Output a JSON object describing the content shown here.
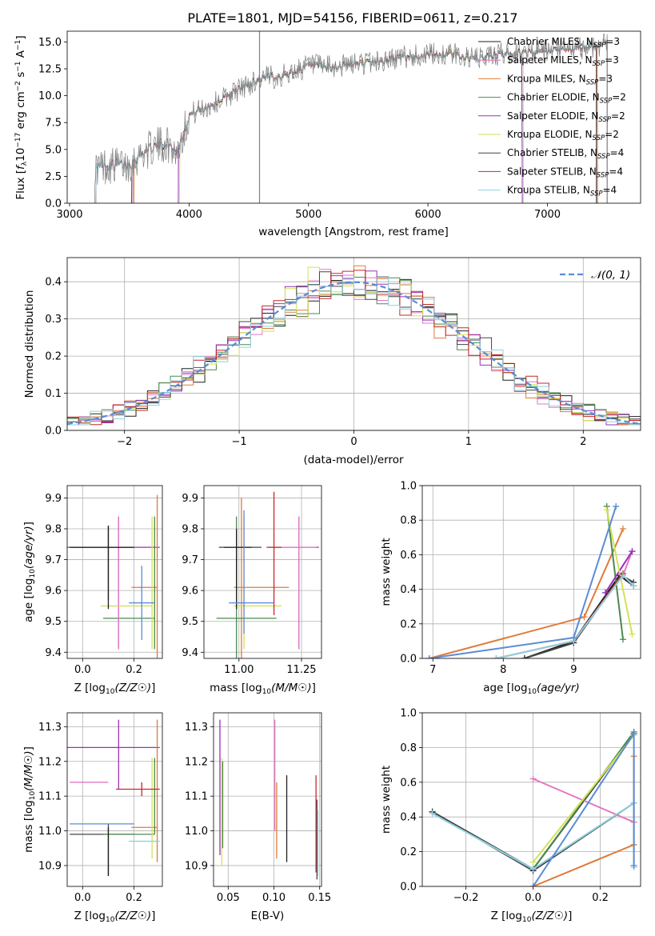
{
  "figure_title": "PLATE=1801, MJD=54156, FIBERID=0611, z=0.217",
  "colors": {
    "chabrier_miles": "#1f1f1f",
    "salpeter_miles": "#e377c2",
    "kroupa_miles": "#e07b39",
    "chabrier_elodie": "#4c8a50",
    "salpeter_elodie": "#9b30b8",
    "kroupa_elodie": "#d4e157",
    "chabrier_stelib": "#444444",
    "salpeter_stelib": "#c62828",
    "kroupa_stelib": "#8fd0e0",
    "data_gray": "#808080",
    "gaussian": "#5b8bd6"
  },
  "chart_data": [
    {
      "id": "spectrum",
      "type": "line",
      "title": "PLATE=1801, MJD=54156, FIBERID=0611, z=0.217",
      "xlabel": "wavelength [Angstrom, rest frame]",
      "ylabel_main": "Flux [",
      "ylabel_sub": "f",
      "ylabel_tail": "10",
      "xlim": [
        2980,
        7780
      ],
      "ylim": [
        0,
        16
      ],
      "xticks": [
        "3000",
        "4000",
        "5000",
        "6000",
        "7000"
      ],
      "yticks": [
        "0.0",
        "2.5",
        "5.0",
        "7.5",
        "10.0",
        "12.5",
        "15.0"
      ],
      "grid": false,
      "legend_position": "right",
      "legend": [
        {
          "name": "Chabrier MILES, N",
          "sub": "SSP",
          "tail": "=3"
        },
        {
          "name": "Salpeter MILES, N",
          "sub": "SSP",
          "tail": "=3"
        },
        {
          "name": "Kroupa MILES, N",
          "sub": "SSP",
          "tail": "=3"
        },
        {
          "name": "Chabrier ELODIE, N",
          "sub": "SSP",
          "tail": "=2"
        },
        {
          "name": "Salpeter ELODIE, N",
          "sub": "SSP",
          "tail": "=2"
        },
        {
          "name": "Kroupa ELODIE, N",
          "sub": "SSP",
          "tail": "=2"
        },
        {
          "name": "Chabrier STELIB, N",
          "sub": "SSP",
          "tail": "=4"
        },
        {
          "name": "Salpeter STELIB, N",
          "sub": "SSP",
          "tail": "=4"
        },
        {
          "name": "Kroupa STELIB, N",
          "sub": "SSP",
          "tail": "=4"
        }
      ],
      "continuum": [
        [
          3210,
          3.2
        ],
        [
          3300,
          3.5
        ],
        [
          3500,
          3.6
        ],
        [
          3600,
          4.6
        ],
        [
          3700,
          5.2
        ],
        [
          3800,
          5.6
        ],
        [
          3900,
          4.8
        ],
        [
          4000,
          8.2
        ],
        [
          4200,
          9.2
        ],
        [
          4400,
          10.5
        ],
        [
          4600,
          11.6
        ],
        [
          4800,
          11.9
        ],
        [
          5000,
          12.8
        ],
        [
          5200,
          12.6
        ],
        [
          5400,
          13.0
        ],
        [
          5600,
          13.2
        ],
        [
          5800,
          13.6
        ],
        [
          6000,
          13.8
        ],
        [
          6200,
          13.9
        ],
        [
          6400,
          13.4
        ],
        [
          6600,
          13.9
        ],
        [
          6800,
          14.0
        ],
        [
          7000,
          14.1
        ],
        [
          7200,
          14.3
        ],
        [
          7400,
          14.6
        ],
        [
          7500,
          15.0
        ]
      ],
      "model_coverage": [
        {
          "series": "Chabrier MILES",
          "x0": 3520,
          "x1": 7410
        },
        {
          "series": "Salpeter MILES",
          "x0": 3530,
          "x1": 7420
        },
        {
          "series": "Kroupa MILES",
          "x0": 3540,
          "x1": 7420
        },
        {
          "series": "Chabrier ELODIE",
          "x0": 3910,
          "x1": 6790
        },
        {
          "series": "Salpeter ELODIE",
          "x0": 3910,
          "x1": 6790
        },
        {
          "series": "Kroupa ELODIE",
          "x0": 3920,
          "x1": 6800
        },
        {
          "series": "Chabrier STELIB",
          "x0": 3220,
          "x1": 7500
        },
        {
          "series": "Salpeter STELIB",
          "x0": 3220,
          "x1": 7500
        },
        {
          "series": "Kroupa STELIB",
          "x0": 3220,
          "x1": 7500
        }
      ],
      "data_coverage": [
        3210,
        7500
      ],
      "spike_x": 4590
    },
    {
      "id": "residuals",
      "type": "histogram",
      "xlabel": "(data-model)/error",
      "ylabel": "Normed distribution",
      "xlim": [
        -2.5,
        2.5
      ],
      "ylim": [
        0,
        0.465
      ],
      "xticks": [
        "−2",
        "−1",
        "0",
        "1",
        "2"
      ],
      "yticks": [
        "0.0",
        "0.1",
        "0.2",
        "0.3",
        "0.4"
      ],
      "grid": true,
      "legend_position": "top-right",
      "legend": "𝒩(0, 1)",
      "bin_width": 0.1,
      "bins_from": -2.5
    },
    {
      "id": "age_vs_Z",
      "type": "errorbar",
      "xlabel": "Z [log",
      "ylabel": "age  [log",
      "xlim": [
        -0.06,
        0.31
      ],
      "ylim": [
        9.38,
        9.94
      ],
      "xticks": [
        "0.0",
        "0.2"
      ],
      "yticks": [
        "9.4",
        "9.5",
        "9.6",
        "9.7",
        "9.8",
        "9.9"
      ],
      "grid": true,
      "points": [
        {
          "x": 0.1,
          "xerr": [
            0.15,
            0.1
          ],
          "y": 9.74,
          "yerr": [
            0.17,
            0.07
          ]
        },
        {
          "x": 0.14,
          "xerr": [
            0.2,
            0.16
          ],
          "y": 9.74,
          "yerr": [
            0.33,
            0.1
          ]
        },
        {
          "x": 0.29,
          "xerr": [
            0.1,
            0.0
          ],
          "y": 9.61,
          "yerr": [
            0.32,
            0.3
          ]
        },
        {
          "x": 0.28,
          "xerr": [
            0.2,
            0.0
          ],
          "y": 9.51,
          "yerr": [
            0.1,
            0.33
          ]
        },
        {
          "x": 0.14,
          "xerr": [
            0.0,
            0.0
          ],
          "y": 9.74,
          "yerr": [
            0.33,
            0.1
          ]
        },
        {
          "x": 0.27,
          "xerr": [
            0.2,
            0.0
          ],
          "y": 9.55,
          "yerr": [
            0.14,
            0.29
          ]
        },
        {
          "x": 0.1,
          "xerr": [
            0.15,
            0.1
          ],
          "y": 9.74,
          "yerr": [
            0.2,
            0.07
          ]
        },
        {
          "x": 0.29,
          "xerr": [
            0.0,
            0.0
          ],
          "y": 9.74,
          "yerr": [
            0.0,
            0.0
          ]
        },
        {
          "x": 0.23,
          "xerr": [
            0.05,
            0.05
          ],
          "y": 9.56,
          "yerr": [
            0.12,
            0.12
          ]
        }
      ]
    },
    {
      "id": "age_vs_mass",
      "type": "errorbar",
      "xlabel": "mass [log",
      "xlim": [
        10.86,
        11.33
      ],
      "ylim": [
        9.38,
        9.94
      ],
      "xticks": [
        "11.00",
        "11.25"
      ],
      "yticks": [
        "9.4",
        "9.5",
        "9.6",
        "9.7",
        "9.8",
        "9.9"
      ],
      "grid": true,
      "points": [
        {
          "x": 10.99,
          "xerr": [
            0.07,
            0.1
          ],
          "y": 9.74,
          "yerr": [
            0.14,
            0.05
          ]
        },
        {
          "x": 11.24,
          "xerr": [
            0.12,
            0.08
          ],
          "y": 9.74,
          "yerr": [
            0.33,
            0.1
          ]
        },
        {
          "x": 11.01,
          "xerr": [
            0.03,
            0.19
          ],
          "y": 9.61,
          "yerr": [
            0.23,
            0.29
          ]
        },
        {
          "x": 10.99,
          "xerr": [
            0.08,
            0.16
          ],
          "y": 9.51,
          "yerr": [
            0.15,
            0.33
          ]
        },
        {
          "x": 11.24,
          "xerr": [
            0.1,
            0.07
          ],
          "y": 9.74,
          "yerr": [
            0.33,
            0.1
          ]
        },
        {
          "x": 11.02,
          "xerr": [
            0.04,
            0.15
          ],
          "y": 9.55,
          "yerr": [
            0.14,
            0.29
          ]
        },
        {
          "x": 10.99,
          "xerr": [
            0.05,
            0.06
          ],
          "y": 9.74,
          "yerr": [
            0.2,
            0.06
          ]
        },
        {
          "x": 11.14,
          "xerr": [
            0.03,
            0.03
          ],
          "y": 9.74,
          "yerr": [
            0.22,
            0.18
          ]
        },
        {
          "x": 11.02,
          "xerr": [
            0.06,
            0.12
          ],
          "y": 9.56,
          "yerr": [
            0.1,
            0.3
          ]
        }
      ]
    },
    {
      "id": "weight_vs_age",
      "type": "line",
      "xlabel": "age  [log",
      "ylabel": "mass weight",
      "xlim": [
        6.85,
        9.95
      ],
      "ylim": [
        0,
        1
      ],
      "xticks": [
        "7",
        "8",
        "9"
      ],
      "yticks": [
        "0.0",
        "0.2",
        "0.4",
        "0.6",
        "0.8",
        "1.0"
      ],
      "grid": true,
      "series": [
        {
          "name": "Chabrier MILES",
          "x": [
            8.3,
            9.0,
            9.65,
            9.85
          ],
          "y": [
            0.0,
            0.1,
            0.48,
            0.42
          ]
        },
        {
          "name": "Salpeter MILES",
          "x": [
            9.0,
            9.7,
            9.83
          ],
          "y": [
            0.1,
            0.48,
            0.62
          ]
        },
        {
          "name": "Kroupa MILES",
          "x": [
            6.95,
            9.15,
            9.7
          ],
          "y": [
            0.0,
            0.24,
            0.75
          ]
        },
        {
          "name": "Chabrier ELODIE",
          "x": [
            9.47,
            9.7
          ],
          "y": [
            0.88,
            0.11
          ]
        },
        {
          "name": "Salpeter ELODIE",
          "x": [
            9.45,
            9.83
          ],
          "y": [
            0.38,
            0.62
          ]
        },
        {
          "name": "Kroupa ELODIE",
          "x": [
            9.47,
            9.83
          ],
          "y": [
            0.86,
            0.14
          ]
        },
        {
          "name": "Chabrier STELIB",
          "x": [
            8.3,
            9.0,
            9.68,
            9.85
          ],
          "y": [
            0.0,
            0.09,
            0.48,
            0.44
          ]
        },
        {
          "name": "Salpeter STELIB",
          "x": [
            7.9,
            9.0,
            9.7
          ],
          "y": [
            0.0,
            0.1,
            0.49
          ]
        },
        {
          "name": "Kroupa STELIB",
          "x": [
            7.9,
            9.0,
            9.7,
            9.85
          ],
          "y": [
            0.0,
            0.1,
            0.48,
            0.42
          ]
        },
        {
          "name": "blue",
          "x": [
            6.95,
            9.0,
            9.6
          ],
          "y": [
            0.0,
            0.12,
            0.88
          ]
        }
      ]
    },
    {
      "id": "mass_vs_Z",
      "type": "errorbar",
      "xlabel": "Z [log",
      "ylabel": "mass [log",
      "xlim": [
        -0.06,
        0.31
      ],
      "ylim": [
        10.84,
        11.34
      ],
      "xticks": [
        "0.0",
        "0.2"
      ],
      "yticks": [
        "10.9",
        "11.0",
        "11.1",
        "11.2",
        "11.3"
      ],
      "grid": true,
      "points": [
        {
          "x": 0.1,
          "xerr": [
            0.15,
            0.1
          ],
          "y": 10.99,
          "yerr": [
            0.12,
            0.03
          ]
        },
        {
          "x": 0.14,
          "xerr": [
            0.2,
            0.16
          ],
          "y": 11.24,
          "yerr": [
            0.12,
            0.08
          ]
        },
        {
          "x": 0.29,
          "xerr": [
            0.1,
            0.0
          ],
          "y": 11.01,
          "yerr": [
            0.1,
            0.31
          ]
        },
        {
          "x": 0.28,
          "xerr": [
            0.2,
            0.0
          ],
          "y": 10.99,
          "yerr": [
            0.0,
            0.22
          ]
        },
        {
          "x": 0.1,
          "xerr": [
            0.15,
            0.0
          ],
          "y": 11.14,
          "yerr": [
            0.0,
            0.0
          ]
        },
        {
          "x": 0.27,
          "xerr": [
            0.0,
            0.0
          ],
          "y": 11.02,
          "yerr": [
            0.1,
            0.19
          ]
        },
        {
          "x": 0.1,
          "xerr": [
            0.0,
            0.0
          ],
          "y": 10.99,
          "yerr": [
            0.12,
            0.02
          ]
        },
        {
          "x": 0.23,
          "xerr": [
            0.1,
            0.07
          ],
          "y": 11.12,
          "yerr": [
            0.02,
            0.02
          ]
        },
        {
          "x": 0.1,
          "xerr": [
            0.15,
            0.1
          ],
          "y": 11.02,
          "yerr": [
            0.0,
            0.0
          ]
        },
        {
          "x": 0.23,
          "xerr": [
            0.05,
            0.07
          ],
          "y": 10.97,
          "yerr": [
            0.0,
            0.0
          ]
        }
      ]
    },
    {
      "id": "mass_vs_ebv",
      "type": "errorbar",
      "xlabel": "E(B-V)",
      "xlim": [
        0.034,
        0.152
      ],
      "ylim": [
        10.84,
        11.34
      ],
      "xticks": [
        "0.05",
        "0.10",
        "0.15"
      ],
      "yticks": [
        "10.9",
        "11.0",
        "11.1",
        "11.2",
        "11.3"
      ],
      "grid": true,
      "vlines": [
        {
          "x": 0.041,
          "y0": 10.93,
          "y1": 11.32,
          "series": "Salpeter ELODIE"
        },
        {
          "x": 0.043,
          "y0": 10.9,
          "y1": 11.21,
          "series": "Kroupa ELODIE"
        },
        {
          "x": 0.044,
          "y0": 10.95,
          "y1": 11.2,
          "series": "Chabrier ELODIE"
        },
        {
          "x": 0.101,
          "y0": 11.0,
          "y1": 11.32,
          "series": "Salpeter MILES"
        },
        {
          "x": 0.103,
          "y0": 10.92,
          "y1": 11.14,
          "series": "Kroupa MILES"
        },
        {
          "x": 0.114,
          "y0": 10.91,
          "y1": 11.16,
          "series": "Chabrier MILES"
        },
        {
          "x": 0.146,
          "y0": 10.88,
          "y1": 11.16,
          "series": "Salpeter STELIB"
        },
        {
          "x": 0.147,
          "y0": 10.86,
          "y1": 11.09,
          "series": "Chabrier STELIB"
        },
        {
          "x": 0.148,
          "y0": 10.87,
          "y1": 11.06,
          "series": "Kroupa STELIB"
        }
      ]
    },
    {
      "id": "weight_vs_Z",
      "type": "line",
      "xlabel": "Z [log",
      "ylabel": "mass weight",
      "xlim": [
        -0.33,
        0.32
      ],
      "ylim": [
        0,
        1
      ],
      "xticks": [
        "−0.2",
        "0.0",
        "0.2"
      ],
      "yticks": [
        "0.0",
        "0.2",
        "0.4",
        "0.6",
        "0.8",
        "1.0"
      ],
      "grid": true,
      "series": [
        {
          "name": "Chabrier MILES",
          "x": [
            -0.3,
            0.0,
            0.3
          ],
          "y": [
            0.43,
            0.1,
            0.88
          ]
        },
        {
          "name": "Salpeter MILES",
          "x": [
            0.0,
            0.3
          ],
          "y": [
            0.62,
            0.37
          ]
        },
        {
          "name": "Kroupa MILES",
          "x": [
            0.0,
            0.3,
            0.3
          ],
          "y": [
            0.0,
            0.24,
            0.75
          ]
        },
        {
          "name": "Chabrier ELODIE",
          "x": [
            0.0,
            0.3
          ],
          "y": [
            0.1,
            0.89
          ]
        },
        {
          "name": "Kroupa ELODIE",
          "x": [
            0.0,
            0.3
          ],
          "y": [
            0.14,
            0.87
          ]
        },
        {
          "name": "Chabrier STELIB",
          "x": [
            -0.3,
            0.0,
            0.3
          ],
          "y": [
            0.43,
            0.09,
            0.48
          ]
        },
        {
          "name": "Kroupa STELIB",
          "x": [
            -0.3,
            0.0,
            0.3,
            0.3
          ],
          "y": [
            0.42,
            0.1,
            0.48,
            0.11
          ]
        },
        {
          "name": "blue",
          "x": [
            0.0,
            0.3,
            0.3
          ],
          "y": [
            0.0,
            0.88,
            0.12
          ]
        }
      ]
    }
  ]
}
